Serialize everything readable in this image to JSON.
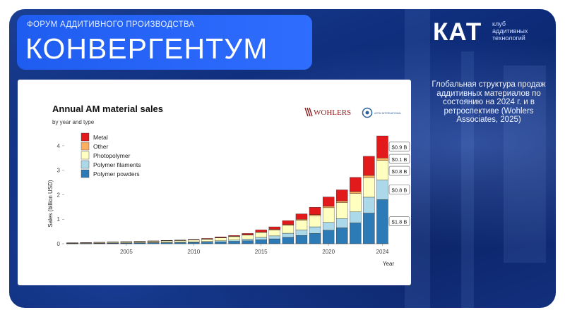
{
  "header": {
    "forum_label": "ФОРУМ АДДИТИВНОГО ПРОИЗВОДСТВА",
    "title": "КОНВЕРГЕНТУМ"
  },
  "brand": {
    "logo_text": "КАТ",
    "tagline": [
      "клуб",
      "аддитивных",
      "технологий"
    ]
  },
  "description": "Глобальная структура продаж аддитивных материалов по состоянию на 2024 г. и в ретроспективе (Wohlers Associates, 2025)",
  "colors": {
    "background": "#0d2b78",
    "banner": "#2563eb",
    "Metal": "#e31a1c",
    "Other": "#fdae61",
    "Photopolymer": "#ffffbf",
    "Polymer filaments": "#abd9e9",
    "Polymer powders": "#2c7bb6"
  },
  "chart_data": {
    "type": "bar",
    "stacked": true,
    "title": "Annual AM material sales",
    "subtitle": "by year and type",
    "xlabel": "Year",
    "ylabel": "Sales (billion USD)",
    "ylim": [
      0,
      4.4
    ],
    "yticks": [
      0,
      1,
      2,
      3,
      4
    ],
    "xticks": [
      2005,
      2010,
      2015,
      2020,
      2024
    ],
    "grid": false,
    "legend_position": "top-left",
    "logos": [
      "WOHLERS",
      "ASTM INTERNATIONAL"
    ],
    "categories": [
      2001,
      2002,
      2003,
      2004,
      2005,
      2006,
      2007,
      2008,
      2009,
      2010,
      2011,
      2012,
      2013,
      2014,
      2015,
      2016,
      2017,
      2018,
      2019,
      2020,
      2021,
      2022,
      2023,
      2024
    ],
    "series": [
      {
        "name": "Polymer powders",
        "values": [
          0.01,
          0.01,
          0.015,
          0.02,
          0.025,
          0.03,
          0.035,
          0.04,
          0.045,
          0.055,
          0.065,
          0.08,
          0.1,
          0.12,
          0.16,
          0.2,
          0.26,
          0.34,
          0.42,
          0.55,
          0.65,
          0.85,
          1.25,
          1.8
        ]
      },
      {
        "name": "Polymer filaments",
        "values": [
          0.005,
          0.005,
          0.008,
          0.01,
          0.012,
          0.015,
          0.018,
          0.02,
          0.022,
          0.025,
          0.03,
          0.04,
          0.05,
          0.07,
          0.1,
          0.12,
          0.17,
          0.22,
          0.27,
          0.32,
          0.38,
          0.45,
          0.65,
          0.8
        ]
      },
      {
        "name": "Photopolymer",
        "values": [
          0.02,
          0.025,
          0.03,
          0.035,
          0.04,
          0.045,
          0.05,
          0.06,
          0.065,
          0.07,
          0.09,
          0.12,
          0.14,
          0.16,
          0.2,
          0.24,
          0.32,
          0.4,
          0.45,
          0.6,
          0.65,
          0.75,
          0.8,
          0.8
        ]
      },
      {
        "name": "Other",
        "values": [
          0.003,
          0.003,
          0.004,
          0.005,
          0.005,
          0.006,
          0.007,
          0.008,
          0.008,
          0.01,
          0.012,
          0.015,
          0.018,
          0.02,
          0.025,
          0.03,
          0.035,
          0.04,
          0.05,
          0.06,
          0.07,
          0.08,
          0.09,
          0.1
        ]
      },
      {
        "name": "Metal",
        "values": [
          0.002,
          0.002,
          0.003,
          0.004,
          0.005,
          0.006,
          0.008,
          0.01,
          0.012,
          0.015,
          0.02,
          0.025,
          0.03,
          0.05,
          0.08,
          0.1,
          0.16,
          0.22,
          0.3,
          0.38,
          0.45,
          0.58,
          0.78,
          0.9
        ]
      }
    ],
    "data_labels": [
      {
        "series": "Metal",
        "text": "$0.9 B"
      },
      {
        "series": "Other",
        "text": "$0.1 B"
      },
      {
        "series": "Photopolymer",
        "text": "$0.8 B"
      },
      {
        "series": "Polymer filaments",
        "text": "$0.8 B"
      },
      {
        "series": "Polymer powders",
        "text": "$1.8 B"
      }
    ]
  }
}
